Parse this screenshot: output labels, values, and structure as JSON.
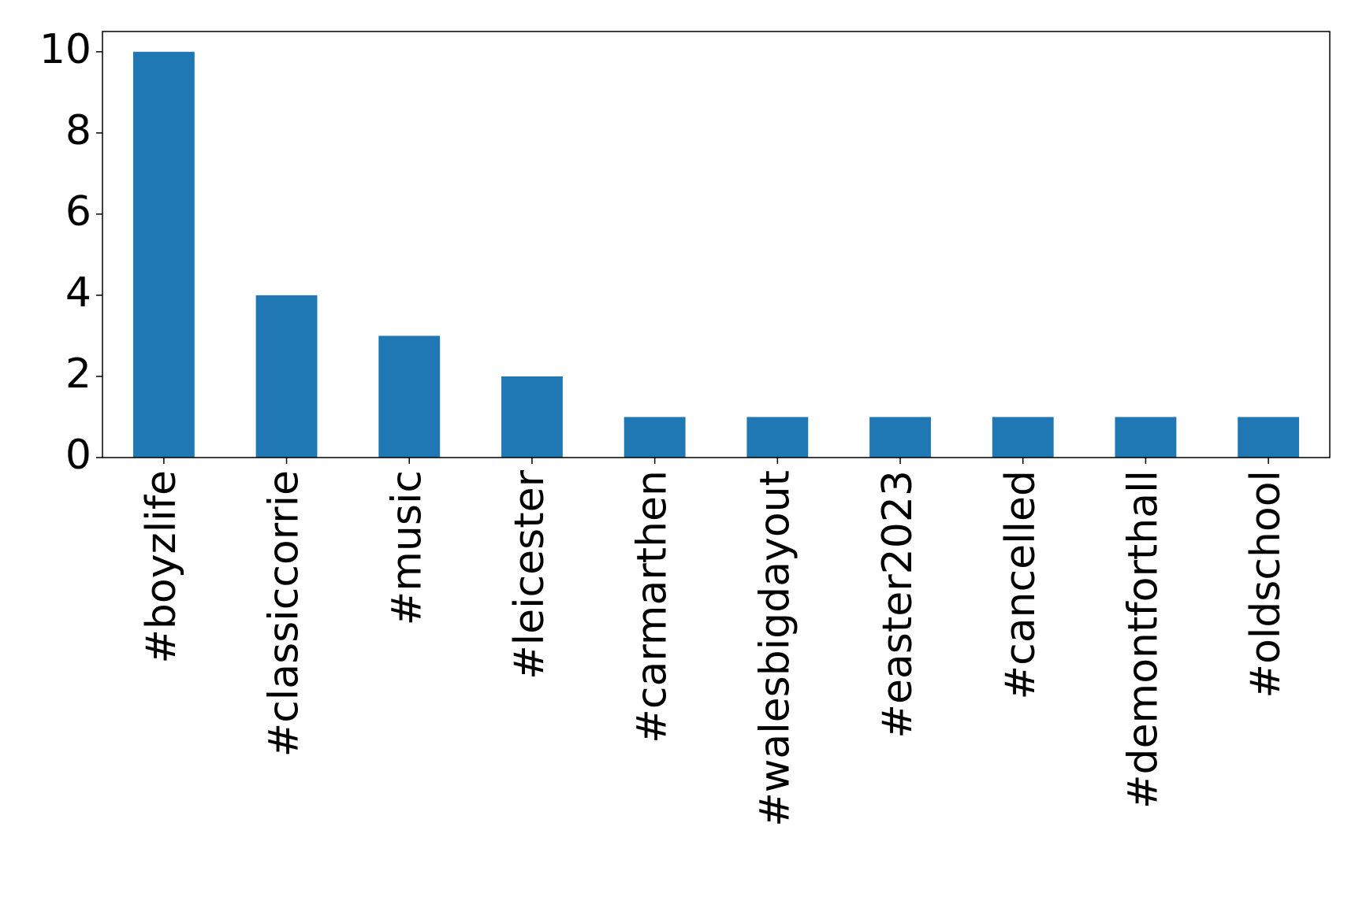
{
  "chart_data": {
    "type": "bar",
    "categories": [
      "#boyzlife",
      "#classiccorrie",
      "#music",
      "#leicester",
      "#carmarthen",
      "#walesbigdayout",
      "#easter2023",
      "#cancelled",
      "#demontforthall",
      "#oldschool"
    ],
    "values": [
      10,
      4,
      3,
      2,
      1,
      1,
      1,
      1,
      1,
      1
    ],
    "color": "#1f77b4",
    "ylim": [
      0,
      10.5
    ],
    "yticks": [
      0,
      2,
      4,
      6,
      8,
      10
    ],
    "grid": false
  }
}
